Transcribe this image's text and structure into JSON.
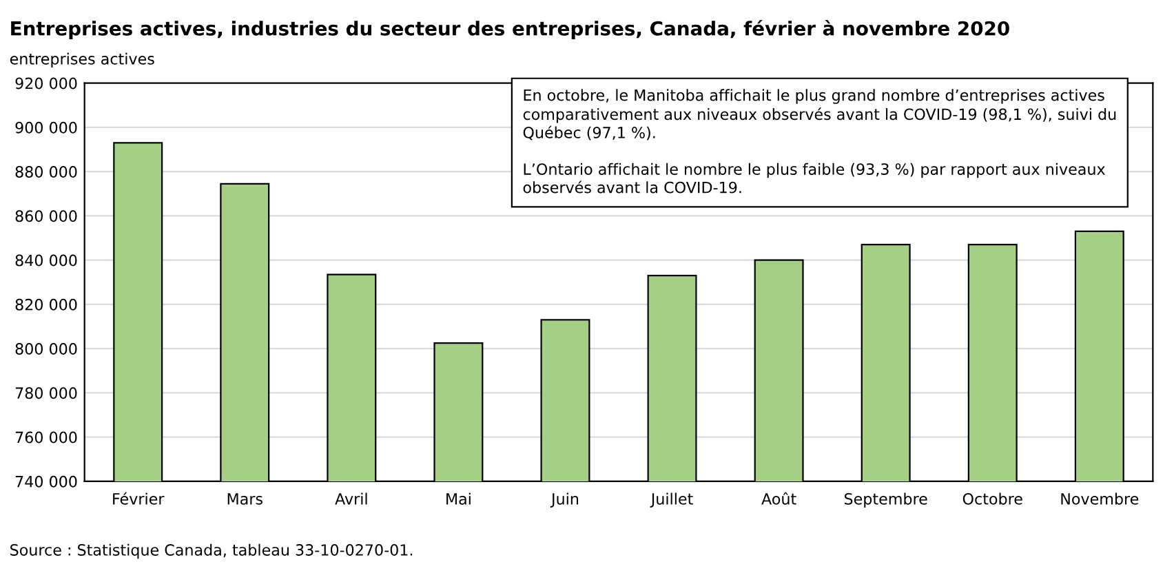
{
  "chart_data": {
    "type": "bar",
    "title": "Entreprises actives, industries du secteur des entreprises, Canada, février à novembre 2020",
    "ylabel": "entreprises actives",
    "categories": [
      "Février",
      "Mars",
      "Avril",
      "Mai",
      "Juin",
      "Juillet",
      "Août",
      "Septembre",
      "Octobre",
      "Novembre"
    ],
    "values": [
      893000,
      874500,
      833500,
      802500,
      813000,
      833000,
      840000,
      847000,
      847000,
      853000
    ],
    "color": "#a4cf85",
    "ylim": [
      740000,
      920000
    ],
    "yticks": [
      {
        "value": 740000,
        "label": "740 000"
      },
      {
        "value": 760000,
        "label": "760 000"
      },
      {
        "value": 780000,
        "label": "780 000"
      },
      {
        "value": 800000,
        "label": "800 000"
      },
      {
        "value": 820000,
        "label": "820 000"
      },
      {
        "value": 840000,
        "label": "840 000"
      },
      {
        "value": 860000,
        "label": "860 000"
      },
      {
        "value": 880000,
        "label": "880 000"
      },
      {
        "value": 900000,
        "label": "900 000"
      },
      {
        "value": 920000,
        "label": "920 000"
      }
    ],
    "grid": "y",
    "annotations": [
      "En octobre, le Manitoba affichait le plus grand nombre d’entreprises actives comparativement aux niveaux observés avant la COVID-19 (98,1 %), suivi du Québec (97,1 %).\n\nL’Ontario affichait le nombre le plus faible (93,3 %) par rapport aux niveaux observés avant la COVID-19.",
      "Source : Statistique Canada, tableau 33-10-0270-01."
    ]
  }
}
